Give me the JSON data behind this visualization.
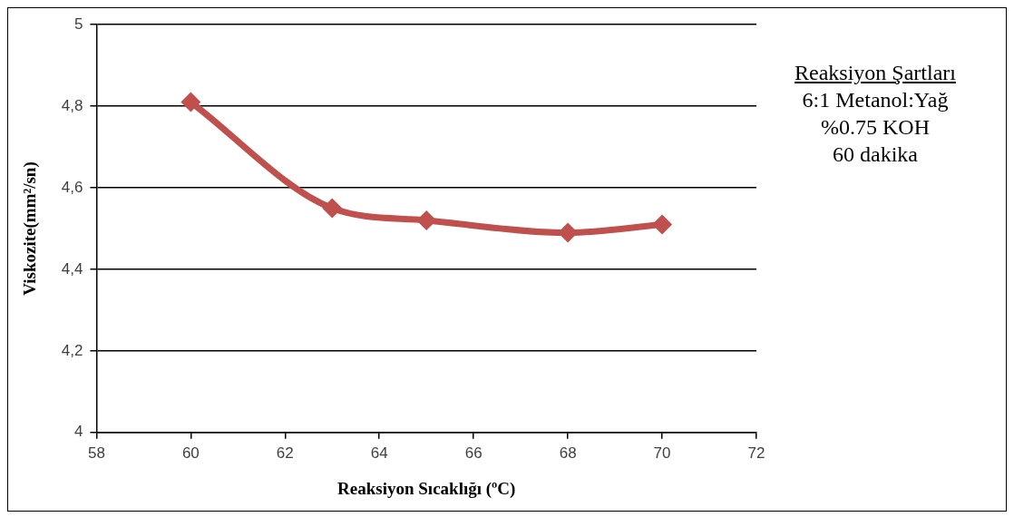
{
  "chart_data": {
    "type": "line",
    "xlabel": "Reaksiyon Sıcaklığı (ºC)",
    "ylabel": "Viskozite(mm²/sn)",
    "x": [
      60,
      63,
      65,
      68,
      70
    ],
    "series": [
      {
        "color": "#c0504d",
        "values": [
          4.81,
          4.55,
          4.52,
          4.49,
          4.51
        ]
      }
    ],
    "xlim": [
      58,
      72
    ],
    "xticks": [
      58,
      60,
      62,
      64,
      66,
      68,
      70,
      72
    ],
    "ylim": [
      4,
      5
    ],
    "yticks": [
      {
        "value": 4,
        "label": "4"
      },
      {
        "value": 4.2,
        "label": "4,2"
      },
      {
        "value": 4.4,
        "label": "4,4"
      },
      {
        "value": 4.6,
        "label": "4,6"
      },
      {
        "value": 4.8,
        "label": "4,8"
      },
      {
        "value": 5,
        "label": "5"
      }
    ],
    "grid": "y",
    "marker": "diamond",
    "line_style": "solid",
    "legend": false,
    "annotations": [
      "Reaksiyon Şartları",
      "6:1 Metanol:Yağ",
      "%0.75 KOH",
      "60 dakika"
    ]
  }
}
